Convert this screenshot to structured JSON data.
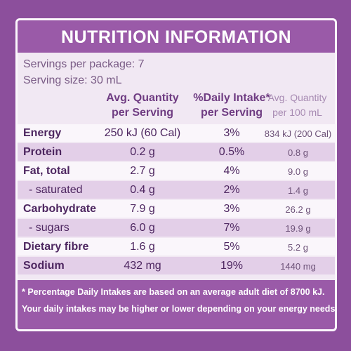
{
  "header": {
    "title": "NUTRITION INFORMATION",
    "servings": [
      "Servings per package: 7",
      "Serving size: 30 mL"
    ]
  },
  "table": {
    "columns": [
      [
        "Avg. Quantity",
        "per Serving"
      ],
      [
        "%Daily Intake*",
        "per Serving"
      ],
      [
        "Avg. Quantity",
        "per 100 mL"
      ]
    ],
    "rows": [
      [
        "Energy",
        "250 kJ (60 Cal)",
        "3%",
        "834 kJ (200 Cal)"
      ],
      [
        "Protein",
        "0.2 g",
        "0.5%",
        "0.8 g"
      ],
      [
        "Fat, total",
        "2.7 g",
        "4%",
        "9.0 g"
      ],
      [
        "- saturated",
        "0.4 g",
        "2%",
        "1.4 g"
      ],
      [
        "Carbohydrate",
        "7.9 g",
        "3%",
        "26.2 g"
      ],
      [
        "- sugars",
        "6.0 g",
        "7%",
        "19.9 g"
      ],
      [
        "Dietary fibre",
        "1.6 g",
        "5%",
        "5.2 g"
      ],
      [
        "Sodium",
        "432 mg",
        "19%",
        "1440 mg"
      ]
    ]
  },
  "footnote": [
    "* Percentage Daily Intakes are based on an average adult diet of 8700 kJ.",
    "Your daily intakes may be higher or lower depending on your energy needs."
  ]
}
